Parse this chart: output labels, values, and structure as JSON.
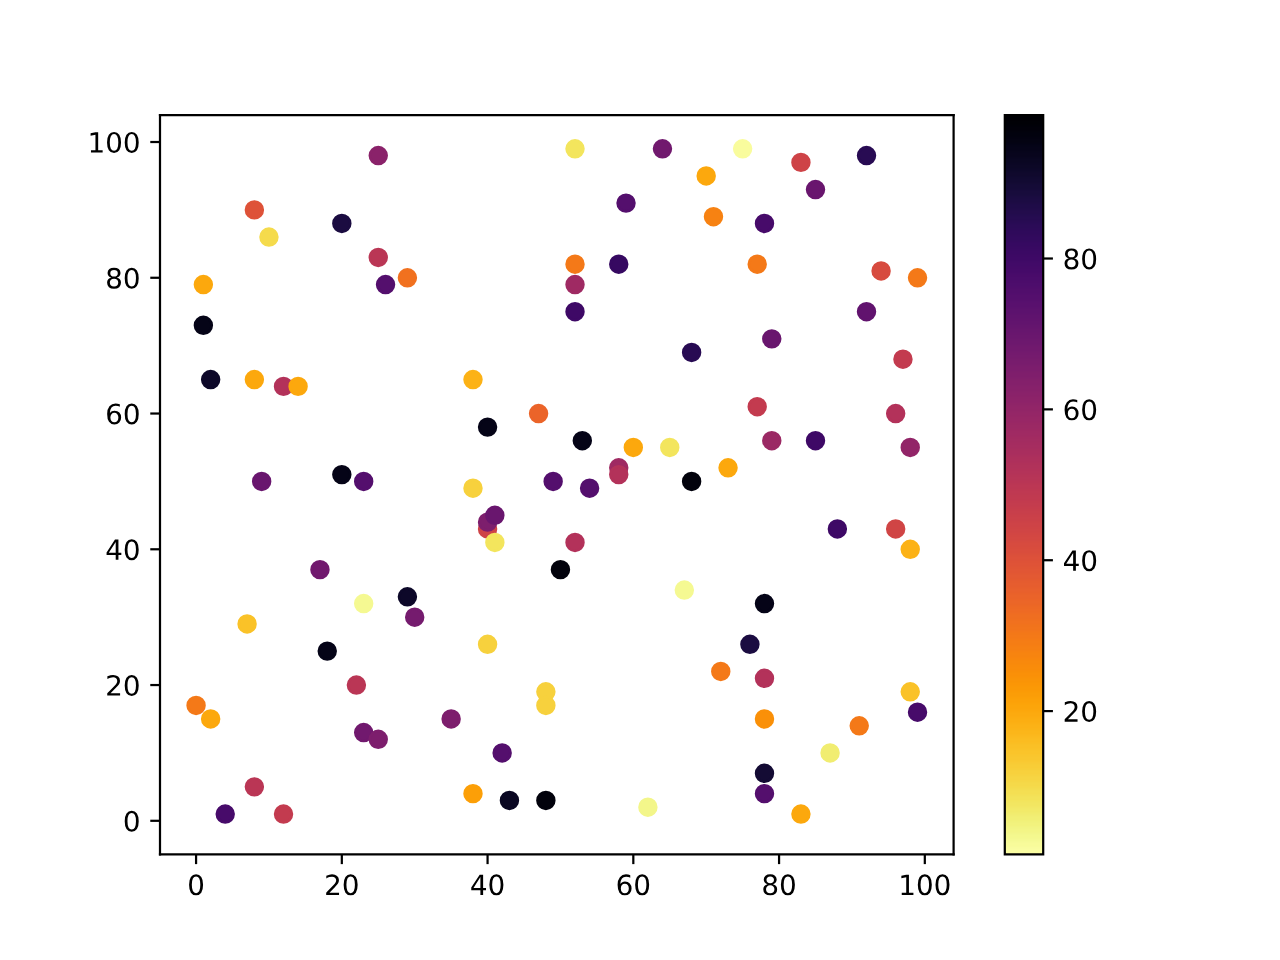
{
  "chart_data": {
    "type": "scatter",
    "x": [
      0,
      1,
      1,
      2,
      2,
      4,
      7,
      8,
      8,
      8,
      9,
      10,
      12,
      12,
      14,
      17,
      18,
      20,
      20,
      22,
      23,
      23,
      23,
      25,
      25,
      25,
      26,
      29,
      29,
      30,
      35,
      38,
      38,
      38,
      40,
      40,
      40,
      41,
      41,
      40,
      42,
      43,
      47,
      48,
      48,
      48,
      49,
      50,
      52,
      52,
      52,
      52,
      52,
      53,
      54,
      58,
      58,
      58,
      59,
      60,
      62,
      64,
      65,
      67,
      68,
      68,
      70,
      71,
      72,
      73,
      75,
      76,
      77,
      77,
      78,
      78,
      78,
      78,
      78,
      78,
      79,
      79,
      83,
      83,
      85,
      85,
      87,
      88,
      91,
      92,
      92,
      94,
      96,
      96,
      97,
      98,
      98,
      98,
      99,
      99
    ],
    "values": [
      17,
      79,
      73,
      65,
      15,
      1,
      29,
      90,
      65,
      5,
      50,
      86,
      64,
      1,
      64,
      37,
      25,
      88,
      51,
      20,
      50,
      32,
      13,
      98,
      83,
      12,
      79,
      80,
      33,
      30,
      15,
      65,
      49,
      4,
      58,
      43,
      44,
      45,
      41,
      26,
      10,
      3,
      60,
      19,
      17,
      3,
      50,
      37,
      99,
      82,
      79,
      75,
      41,
      56,
      49,
      52,
      51,
      82,
      91,
      55,
      2,
      99,
      55,
      34,
      69,
      50,
      95,
      89,
      22,
      52,
      99,
      26,
      82,
      61,
      88,
      32,
      21,
      15,
      7,
      4,
      71,
      56,
      97,
      1,
      93,
      56,
      10,
      43,
      14,
      98,
      75,
      81,
      60,
      43,
      68,
      55,
      40,
      19,
      80,
      16
    ],
    "cvalues": [
      30,
      20,
      95,
      92,
      20,
      78,
      15,
      40,
      20,
      50,
      70,
      10,
      52,
      48,
      20,
      68,
      95,
      88,
      95,
      50,
      75,
      3,
      68,
      62,
      50,
      65,
      75,
      32,
      92,
      67,
      65,
      18,
      12,
      22,
      95,
      45,
      65,
      70,
      8,
      12,
      75,
      93,
      35,
      12,
      12,
      97,
      75,
      97,
      8,
      30,
      57,
      80,
      52,
      95,
      75,
      57,
      52,
      82,
      75,
      20,
      4,
      68,
      8,
      3,
      85,
      97,
      20,
      28,
      30,
      20,
      2,
      88,
      30,
      48,
      78,
      95,
      52,
      25,
      90,
      75,
      70,
      58,
      45,
      20,
      70,
      80,
      6,
      80,
      30,
      85,
      72,
      42,
      52,
      44,
      48,
      60,
      18,
      15,
      30,
      78
    ],
    "marker": "circle",
    "xlim": [
      -4.95,
      103.95
    ],
    "ylim": [
      -4.95,
      103.95
    ],
    "xticks": [
      0,
      20,
      40,
      60,
      80,
      100
    ],
    "yticks": [
      0,
      20,
      40,
      60,
      80,
      100
    ],
    "clim": [
      1,
      99
    ],
    "cticks": [
      20,
      40,
      60,
      80
    ],
    "grid": false,
    "legend": false
  }
}
